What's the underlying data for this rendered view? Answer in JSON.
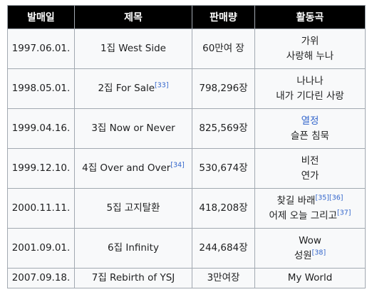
{
  "table": {
    "headers": [
      "발매일",
      "제목",
      "판매량",
      "활동곡"
    ],
    "rows": [
      {
        "date": "1997.06.01.",
        "title": "1집 West Side",
        "title_ref": "",
        "sales": "60만여 장",
        "songs": [
          {
            "text": "가위",
            "ref": "",
            "link": false
          },
          {
            "text": "사랑해 누나",
            "ref": "",
            "link": false
          }
        ]
      },
      {
        "date": "1998.05.01.",
        "title": "2집 For Sale",
        "title_ref": "[33]",
        "sales": "798,296장",
        "songs": [
          {
            "text": "나나나",
            "ref": "",
            "link": false
          },
          {
            "text": "내가 기다린 사랑",
            "ref": "",
            "link": false
          }
        ]
      },
      {
        "date": "1999.04.16.",
        "title": "3집 Now or Never",
        "title_ref": "",
        "sales": "825,569장",
        "songs": [
          {
            "text": "열정",
            "ref": "",
            "link": true
          },
          {
            "text": "슬픈 침묵",
            "ref": "",
            "link": false
          }
        ]
      },
      {
        "date": "1999.12.10.",
        "title": "4집 Over and Over",
        "title_ref": "[34]",
        "sales": "530,674장",
        "songs": [
          {
            "text": "비전",
            "ref": "",
            "link": false
          },
          {
            "text": "연가",
            "ref": "",
            "link": false
          }
        ]
      },
      {
        "date": "2000.11.11.",
        "title": "5집 고지탈환",
        "title_ref": "",
        "sales": "418,208장",
        "songs": [
          {
            "text": "찾길 바래",
            "ref": "[35][36]",
            "link": false
          },
          {
            "text": "어제 오늘 그리고",
            "ref": "[37]",
            "link": false
          }
        ]
      },
      {
        "date": "2001.09.01.",
        "title": "6집 Infinity",
        "title_ref": "",
        "sales": "244,684장",
        "songs": [
          {
            "text": "Wow",
            "ref": "",
            "link": false
          },
          {
            "text": "성원",
            "ref": "[38]",
            "link": false
          }
        ]
      },
      {
        "date": "2007.09.18.",
        "title": "7집 Rebirth of YSJ",
        "title_ref": "",
        "sales": "3만여장",
        "songs": [
          {
            "text": "My World",
            "ref": "",
            "link": false
          }
        ]
      }
    ]
  },
  "colors": {
    "header_bg": "#000000",
    "header_text": "#ffffff",
    "cell_bg": "#f8f9fa",
    "border": "#a2a9b1",
    "link": "#3366cc"
  }
}
